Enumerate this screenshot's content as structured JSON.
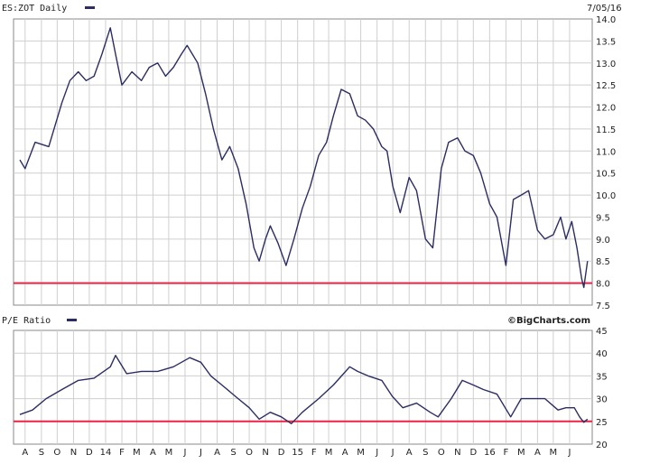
{
  "colors": {
    "series": "#2b2d63",
    "reference": "#ee2244",
    "grid": "#cfcfcf",
    "frame": "#888888"
  },
  "header": {
    "symbol_label": "ES:ZOT Daily",
    "date": "7/05/16",
    "pe_label": "P/E Ratio",
    "brand": "©BigCharts.com"
  },
  "chart_data": [
    {
      "type": "line",
      "title": "ES:ZOT Daily",
      "ylim": [
        7.5,
        14.0
      ],
      "y_ticks": [
        "14.0",
        "13.5",
        "13.0",
        "12.5",
        "12.0",
        "11.5",
        "11.0",
        "10.5",
        "10.0",
        "9.5",
        "9.0",
        "8.5",
        "8.0",
        "7.5"
      ],
      "reference_line": 8.0,
      "grid": true,
      "series": [
        {
          "x": [
            "2013-07-22",
            "2013-08-01",
            "2013-08-20",
            "2013-09-15",
            "2013-10-10",
            "2013-10-25",
            "2013-11-10",
            "2013-11-25",
            "2013-12-10",
            "2013-12-25",
            "2014-01-10",
            "2014-01-20",
            "2014-02-01",
            "2014-02-20",
            "2014-03-10",
            "2014-03-25",
            "2014-04-10",
            "2014-04-25",
            "2014-05-10",
            "2014-05-25",
            "2014-06-05",
            "2014-06-15",
            "2014-06-25",
            "2014-07-10",
            "2014-07-25",
            "2014-08-10",
            "2014-08-25",
            "2014-09-10",
            "2014-09-25",
            "2014-10-10",
            "2014-10-20",
            "2014-11-01",
            "2014-11-10",
            "2014-11-25",
            "2014-12-10",
            "2014-12-25",
            "2015-01-10",
            "2015-01-25",
            "2015-02-10",
            "2015-02-25",
            "2015-03-10",
            "2015-03-25",
            "2015-04-10",
            "2015-04-25",
            "2015-05-10",
            "2015-05-25",
            "2015-06-10",
            "2015-06-20",
            "2015-07-01",
            "2015-07-15",
            "2015-08-01",
            "2015-08-15",
            "2015-09-01",
            "2015-09-15",
            "2015-10-01",
            "2015-10-15",
            "2015-11-01",
            "2015-11-15",
            "2015-12-01",
            "2015-12-15",
            "2016-01-01",
            "2016-01-15",
            "2016-02-01",
            "2016-02-15",
            "2016-03-01",
            "2016-03-15",
            "2016-04-01",
            "2016-04-15",
            "2016-05-01",
            "2016-05-15",
            "2016-05-25",
            "2016-06-05",
            "2016-06-15",
            "2016-06-24",
            "2016-06-28",
            "2016-07-05"
          ],
          "values": [
            10.8,
            10.6,
            11.2,
            11.1,
            12.1,
            12.6,
            12.8,
            12.6,
            12.7,
            13.2,
            13.8,
            13.2,
            12.5,
            12.8,
            12.6,
            12.9,
            13.0,
            12.7,
            12.9,
            13.2,
            13.4,
            13.2,
            13.0,
            12.3,
            11.5,
            10.8,
            11.1,
            10.6,
            9.8,
            8.8,
            8.5,
            9.0,
            9.3,
            8.9,
            8.4,
            9.0,
            9.7,
            10.2,
            10.9,
            11.2,
            11.8,
            12.4,
            12.3,
            11.8,
            11.7,
            11.5,
            11.1,
            11.0,
            10.2,
            9.6,
            10.4,
            10.1,
            9.0,
            8.8,
            10.6,
            11.2,
            11.3,
            11.0,
            10.9,
            10.5,
            9.8,
            9.5,
            8.4,
            9.9,
            10.0,
            10.1,
            9.2,
            9.0,
            9.1,
            9.5,
            9.0,
            9.4,
            8.8,
            8.1,
            7.9,
            8.5
          ]
        }
      ]
    },
    {
      "type": "line",
      "title": "P/E Ratio",
      "ylim": [
        20,
        45
      ],
      "y_ticks": [
        "45",
        "40",
        "35",
        "30",
        "25",
        "20"
      ],
      "reference_line": 25,
      "grid": true,
      "x_ticks": [
        "A",
        "S",
        "O",
        "N",
        "D",
        "14",
        "F",
        "M",
        "A",
        "M",
        "J",
        "J",
        "A",
        "S",
        "O",
        "N",
        "D",
        "15",
        "F",
        "M",
        "A",
        "M",
        "J",
        "J",
        "A",
        "S",
        "O",
        "N",
        "D",
        "16",
        "F",
        "M",
        "A",
        "M",
        "J"
      ],
      "series": [
        {
          "x": [
            "2013-07-22",
            "2013-08-15",
            "2013-09-10",
            "2013-10-10",
            "2013-11-10",
            "2013-12-10",
            "2014-01-10",
            "2014-01-20",
            "2014-02-10",
            "2014-03-10",
            "2014-04-10",
            "2014-05-10",
            "2014-06-10",
            "2014-07-01",
            "2014-07-20",
            "2014-08-10",
            "2014-09-10",
            "2014-10-01",
            "2014-10-20",
            "2014-11-10",
            "2014-12-01",
            "2014-12-20",
            "2015-01-10",
            "2015-02-10",
            "2015-03-10",
            "2015-04-10",
            "2015-04-25",
            "2015-05-15",
            "2015-06-10",
            "2015-06-30",
            "2015-07-20",
            "2015-08-15",
            "2015-09-10",
            "2015-09-25",
            "2015-10-20",
            "2015-11-10",
            "2015-12-01",
            "2015-12-20",
            "2016-01-15",
            "2016-02-10",
            "2016-03-01",
            "2016-03-20",
            "2016-04-15",
            "2016-05-10",
            "2016-05-25",
            "2016-06-10",
            "2016-06-20",
            "2016-06-28",
            "2016-07-05"
          ],
          "values": [
            26.5,
            27.5,
            30,
            32,
            34,
            34.5,
            37,
            39.5,
            35.5,
            36,
            36,
            37,
            39,
            38,
            35,
            33,
            30,
            28,
            25.5,
            27,
            26,
            24.5,
            27,
            30,
            33,
            37,
            36,
            35,
            34,
            30.5,
            28,
            29,
            27,
            26,
            30,
            34,
            33,
            32,
            31,
            26,
            30,
            30,
            30,
            27.5,
            28,
            28,
            26,
            24.8,
            25.5
          ]
        }
      ]
    }
  ]
}
